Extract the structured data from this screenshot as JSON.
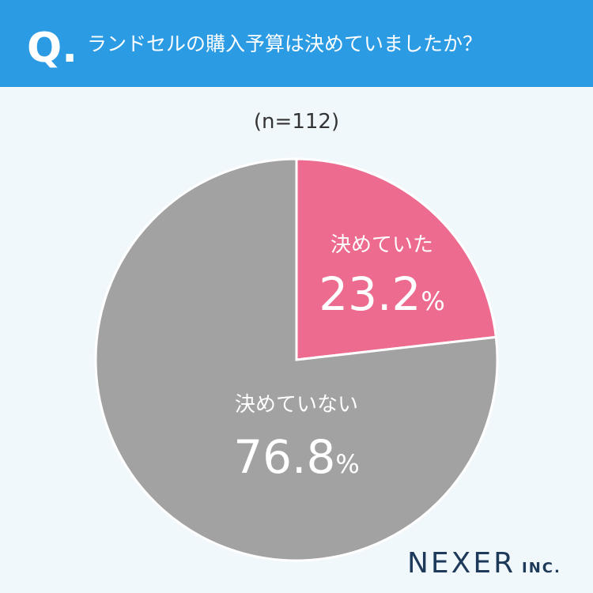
{
  "header": {
    "mark": "Q.",
    "title": "ランドセルの購入予算は決めていましたか？"
  },
  "chart_data": {
    "type": "pie",
    "subtitle": "(n=112)",
    "categories": [
      "決めていた",
      "決めていない"
    ],
    "values": [
      23.2,
      76.8
    ],
    "value_labels": [
      "23.2%",
      "76.8%"
    ],
    "colors": [
      "#ed6b8e",
      "#a2a2a2"
    ]
  },
  "brand": {
    "name": "NEXER",
    "suffix": "INC."
  }
}
